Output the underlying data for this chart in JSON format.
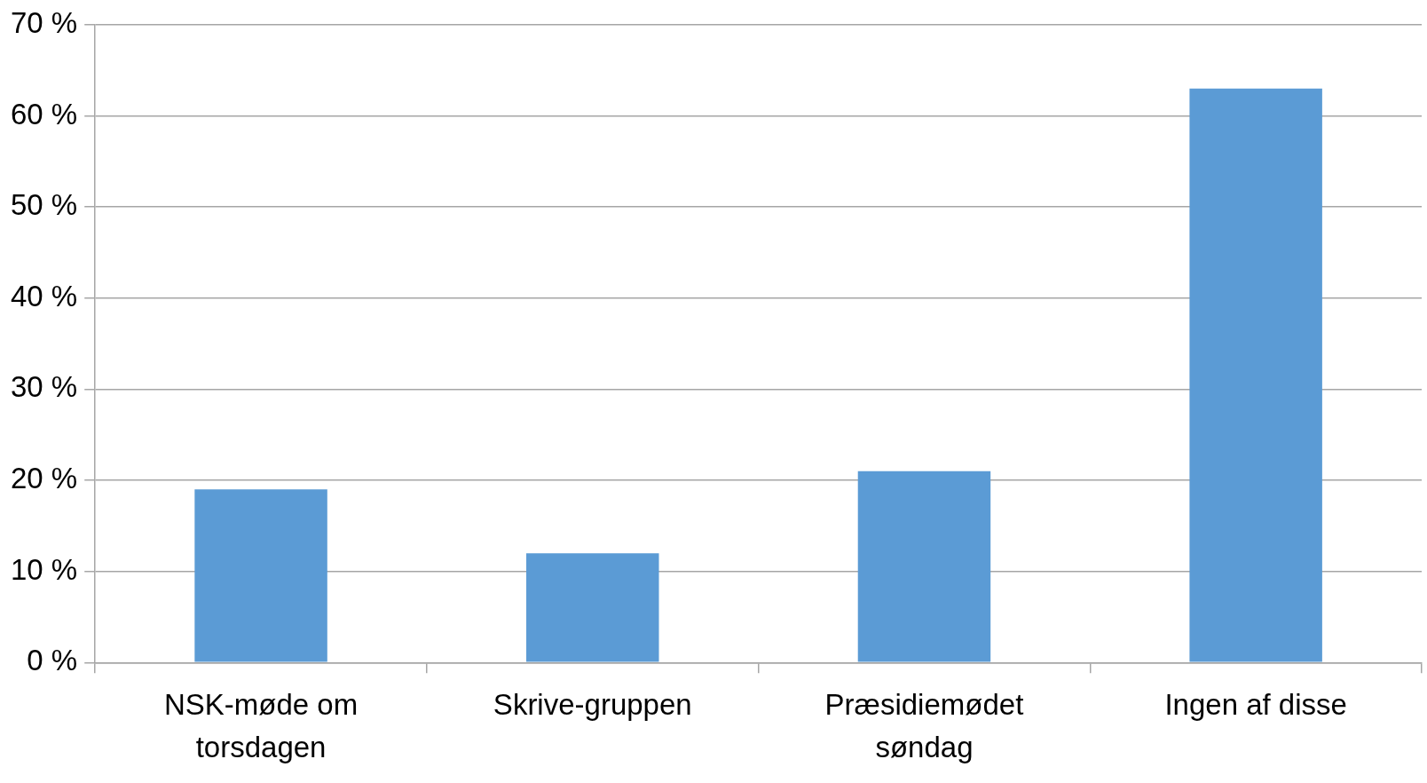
{
  "chart_data": {
    "type": "bar",
    "categories": [
      "NSK-møde om torsdagen",
      "Skrive-gruppen",
      "Præsidiemødet søndag",
      "Ingen af disse"
    ],
    "values": [
      19,
      12,
      21,
      63
    ],
    "color": "#5b9bd5",
    "ylim": [
      0,
      70
    ],
    "yticks": [
      {
        "value": 0,
        "label": "0 %"
      },
      {
        "value": 10,
        "label": "10 %"
      },
      {
        "value": 20,
        "label": "20 %"
      },
      {
        "value": 30,
        "label": "30 %"
      },
      {
        "value": 40,
        "label": "40 %"
      },
      {
        "value": 50,
        "label": "50 %"
      },
      {
        "value": 60,
        "label": "60 %"
      },
      {
        "value": 70,
        "label": "70 %"
      }
    ],
    "grid": "y",
    "legend": false
  }
}
